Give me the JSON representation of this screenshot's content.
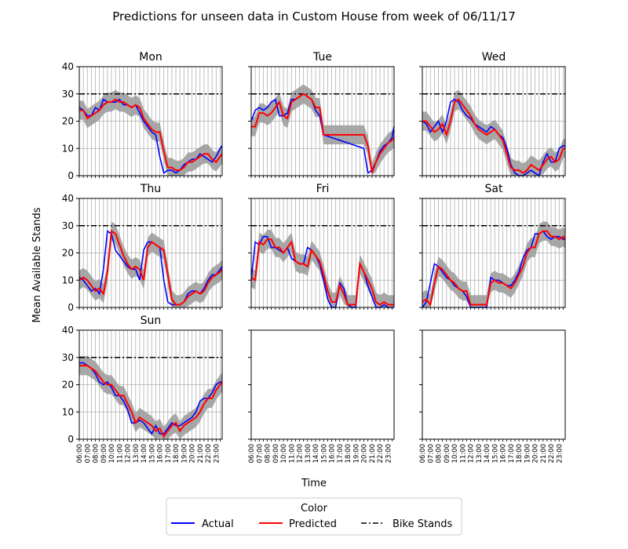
{
  "figure": {
    "title": "Predictions for unseen data in Custom House from week of 06/11/17",
    "xlabel": "Time",
    "ylabel": "Mean Available Stands"
  },
  "legend": {
    "title": "Color",
    "items": [
      {
        "label": "Actual",
        "color": "#0000ff",
        "style": "solid"
      },
      {
        "label": "Predicted",
        "color": "#ff0000",
        "style": "solid"
      },
      {
        "label": "Bike Stands",
        "color": "#000000",
        "style": "dashdot"
      }
    ]
  },
  "chart_data": {
    "type": "line",
    "x_ticks": [
      "06:00",
      "07:00",
      "08:00",
      "09:00",
      "10:00",
      "11:00",
      "12:00",
      "13:00",
      "14:00",
      "15:00",
      "16:00",
      "17:00",
      "18:00",
      "19:00",
      "20:00",
      "21:00",
      "22:00",
      "23:00"
    ],
    "xlim": [
      6.0,
      23.75
    ],
    "ylim": [
      0,
      40
    ],
    "y_ticks": [
      0,
      10,
      20,
      30,
      40
    ],
    "grid": true,
    "bike_stands": 30,
    "band_color": "#999999",
    "panels": [
      {
        "title": "Mon",
        "x": [
          6,
          6.5,
          7,
          7.5,
          8,
          8.5,
          9,
          9.5,
          10,
          10.5,
          11,
          11.5,
          12,
          12.5,
          13,
          13.5,
          14,
          14.5,
          15,
          15.5,
          16,
          16.5,
          17,
          17.5,
          18,
          18.5,
          19,
          19.5,
          20,
          20.5,
          21,
          21.5,
          22,
          22.5,
          23,
          23.5,
          23.75
        ],
        "actual": [
          25,
          24,
          22,
          22,
          25,
          24,
          28,
          27,
          27,
          27,
          28,
          26,
          26,
          25,
          26,
          23,
          20,
          18,
          16,
          15,
          7,
          1,
          2,
          2,
          1,
          2,
          4,
          5,
          6,
          6,
          8,
          7,
          6,
          5,
          7,
          10,
          11
        ],
        "predicted": [
          24,
          24,
          21,
          22,
          23,
          24,
          26,
          27,
          27,
          28,
          27,
          27,
          26,
          25,
          26,
          25,
          21,
          19,
          17,
          16,
          16,
          9,
          3,
          3,
          2,
          2,
          3,
          5,
          5,
          6,
          7,
          8,
          8,
          6,
          5,
          7,
          8
        ],
        "band_width": 3.5
      },
      {
        "title": "Tue",
        "x": [
          6,
          6.5,
          7,
          7.5,
          8,
          8.5,
          9,
          9.5,
          10,
          10.5,
          11,
          11.5,
          12,
          12.5,
          13,
          13.5,
          14,
          14.5,
          15,
          15.5,
          16,
          16.5,
          17,
          17.5,
          18,
          18.5,
          19,
          19.5,
          20,
          20.5,
          21,
          21.5,
          22,
          22.5,
          23,
          23.5,
          23.75
        ],
        "actual": [
          20,
          24,
          25,
          24,
          25,
          27,
          28,
          22,
          22,
          23,
          28,
          28,
          29,
          30,
          29,
          28,
          24,
          22,
          15,
          14.5,
          14,
          13.5,
          13,
          12.5,
          12,
          11.5,
          11,
          10.5,
          10,
          1,
          2,
          5,
          9,
          11,
          12,
          14,
          18
        ],
        "predicted": [
          18,
          18,
          23,
          23,
          22,
          23,
          25,
          27,
          22,
          21,
          27,
          28,
          29,
          30,
          29,
          28,
          25,
          25,
          15,
          15,
          15,
          15,
          15,
          15,
          15,
          15,
          15,
          15,
          15,
          11,
          1,
          5,
          8,
          10,
          12,
          13,
          14
        ],
        "band_width": 3.5
      },
      {
        "title": "Wed",
        "x": [
          6,
          6.5,
          7,
          7.5,
          8,
          8.5,
          9,
          9.5,
          10,
          10.5,
          11,
          11.5,
          12,
          12.5,
          13,
          13.5,
          14,
          14.5,
          15,
          15.5,
          16,
          16.5,
          17,
          17.5,
          18,
          18.5,
          19,
          19.5,
          20,
          20.5,
          21,
          21.5,
          22,
          22.5,
          23,
          23.5,
          23.75
        ],
        "actual": [
          20,
          19,
          16,
          18,
          20,
          16,
          20,
          27,
          28,
          27,
          24,
          22,
          21,
          19,
          18,
          17,
          16,
          18,
          17,
          15,
          14,
          10,
          4,
          1,
          0,
          0,
          1,
          2,
          1,
          0,
          5,
          8,
          5,
          5,
          10,
          11,
          11
        ],
        "predicted": [
          20,
          20,
          18,
          16,
          17,
          19,
          15,
          20,
          27,
          28,
          26,
          24,
          22,
          19,
          17,
          16,
          15,
          16,
          17,
          15,
          13,
          8,
          3,
          2,
          2,
          1,
          2,
          4,
          3,
          2,
          4,
          6,
          7,
          5,
          6,
          10,
          10
        ],
        "band_width": 3.5
      },
      {
        "title": "Thu",
        "x": [
          6,
          6.5,
          7,
          7.5,
          8,
          8.5,
          9,
          9.5,
          10,
          10.5,
          11,
          11.5,
          12,
          12.5,
          13,
          13.5,
          14,
          14.5,
          15,
          15.5,
          16,
          16.5,
          17,
          17.5,
          18,
          18.5,
          19,
          19.5,
          20,
          20.5,
          21,
          21.5,
          22,
          22.5,
          23,
          23.5,
          23.75
        ],
        "actual": [
          11,
          10,
          8,
          6,
          7,
          5,
          14,
          28,
          27,
          21,
          19,
          17,
          15,
          14,
          14,
          10,
          21,
          24,
          24,
          23,
          22,
          10,
          2,
          1,
          1,
          1,
          2,
          5,
          6,
          6,
          5,
          7,
          10,
          12,
          12,
          14,
          15
        ],
        "predicted": [
          10,
          11,
          10,
          8,
          6,
          7,
          5,
          13,
          28,
          27,
          23,
          19,
          16,
          14,
          15,
          14,
          10,
          22,
          24,
          23,
          22,
          21,
          12,
          3,
          1,
          1,
          2,
          4,
          5,
          6,
          5,
          6,
          9,
          11,
          12,
          13,
          14
        ],
        "band_width": 3.5
      },
      {
        "title": "Fri",
        "x": [
          6,
          6.5,
          7,
          7.5,
          8,
          8.5,
          9,
          9.5,
          10,
          10.5,
          11,
          11.5,
          12,
          12.5,
          13,
          13.5,
          14,
          14.5,
          15,
          15.5,
          16,
          16.5,
          17,
          17.5,
          18,
          18.5,
          19,
          19.5,
          20,
          20.5,
          21,
          21.5,
          22,
          22.5,
          23,
          23.5,
          23.75
        ],
        "actual": [
          10,
          24,
          23,
          26,
          26,
          22,
          22,
          21,
          20,
          22,
          18,
          17,
          16,
          16,
          22,
          21,
          19,
          16,
          10,
          3,
          0,
          0,
          9,
          7,
          1,
          0,
          0,
          16,
          13,
          8,
          4,
          0,
          0,
          1,
          0,
          0,
          0
        ],
        "predicted": [
          11,
          10,
          24,
          23,
          25,
          25,
          22,
          22,
          20,
          22,
          24,
          17,
          16,
          16,
          15,
          21,
          19,
          17,
          12,
          6,
          2,
          2,
          8,
          5,
          1,
          1,
          1,
          16,
          13,
          10,
          7,
          2,
          1,
          2,
          1,
          1,
          1
        ],
        "band_width": 3.5
      },
      {
        "title": "Sat",
        "x": [
          6,
          6.5,
          7,
          7.5,
          8,
          8.5,
          9,
          9.5,
          10,
          10.5,
          11,
          11.5,
          12,
          12.5,
          13,
          13.5,
          14,
          14.5,
          15,
          15.5,
          16,
          16.5,
          17,
          17.5,
          18,
          18.5,
          19,
          19.5,
          20,
          20.5,
          21,
          21.5,
          22,
          22.5,
          23,
          23.5,
          23.75
        ],
        "actual": [
          0,
          2,
          9,
          16,
          15,
          13,
          11,
          10,
          8,
          7,
          6,
          4,
          0,
          0,
          0,
          0,
          0,
          11,
          10,
          10,
          9,
          8,
          8,
          10,
          13,
          18,
          21,
          22,
          27,
          27,
          28,
          26,
          25,
          26,
          26,
          25,
          25
        ],
        "predicted": [
          2,
          3,
          1,
          9,
          15,
          14,
          12,
          10,
          9,
          7,
          6,
          6,
          1,
          1,
          1,
          1,
          1,
          9,
          10,
          9,
          9,
          8,
          7,
          9,
          12,
          15,
          20,
          22,
          22,
          27,
          28,
          28,
          26,
          26,
          25,
          26,
          25
        ],
        "band_width": 3.5
      },
      {
        "title": "Sun",
        "x": [
          6,
          6.5,
          7,
          7.5,
          8,
          8.5,
          9,
          9.5,
          10,
          10.5,
          11,
          11.5,
          12,
          12.5,
          13,
          13.5,
          14,
          14.5,
          15,
          15.5,
          16,
          16.5,
          17,
          17.5,
          18,
          18.5,
          19,
          19.5,
          20,
          20.5,
          21,
          21.5,
          22,
          22.5,
          23,
          23.5,
          23.75
        ],
        "actual": [
          28,
          28,
          27,
          26,
          24,
          21,
          20,
          21,
          19,
          16,
          16,
          14,
          11,
          6,
          6,
          7,
          6,
          4,
          2,
          5,
          2,
          2,
          4,
          6,
          5,
          5,
          6,
          7,
          8,
          10,
          14,
          15,
          15,
          17,
          20,
          21,
          21
        ],
        "predicted": [
          27,
          27,
          27,
          26,
          25,
          23,
          21,
          20,
          20,
          18,
          16,
          16,
          13,
          10,
          6,
          8,
          7,
          6,
          5,
          3,
          4,
          1,
          3,
          5,
          6,
          3,
          5,
          6,
          7,
          8,
          10,
          13,
          15,
          15,
          18,
          20,
          21
        ],
        "band_width": 3.5
      },
      {
        "title": "",
        "x": [],
        "actual": [],
        "predicted": [],
        "band_width": 0
      },
      {
        "title": "",
        "x": [],
        "actual": [],
        "predicted": [],
        "band_width": 0
      }
    ]
  }
}
